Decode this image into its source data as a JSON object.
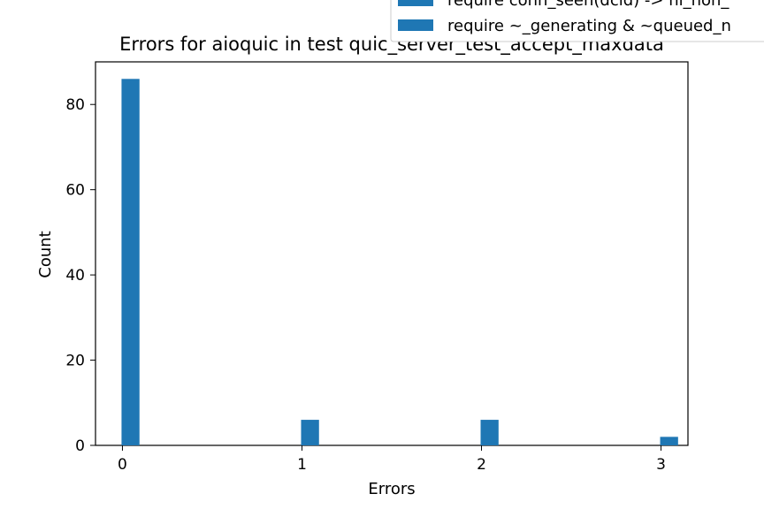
{
  "chart_data": {
    "type": "bar",
    "title": "Errors for aioquic in test quic_server_test_accept_maxdata",
    "xlabel": "Errors",
    "ylabel": "Count",
    "x_ticks": [
      "0",
      "1",
      "2",
      "3"
    ],
    "y_ticks": [
      "0",
      "20",
      "40",
      "60",
      "80"
    ],
    "xlim": [
      -0.15,
      3.15
    ],
    "ylim": [
      0,
      90
    ],
    "bar_color": "#1f77b4",
    "legend": {
      "placement": "top-right, partially cut off",
      "entries": [
        {
          "label": "require conn_seen(dcid) -> nl_non_",
          "color": "#1f77b4"
        },
        {
          "label": "require ~_generating & ~queued_n",
          "color": "#1f77b4"
        }
      ]
    },
    "series": [
      {
        "x": [
          0,
          1,
          2,
          3
        ],
        "values": [
          86,
          6,
          6,
          2
        ]
      }
    ]
  }
}
